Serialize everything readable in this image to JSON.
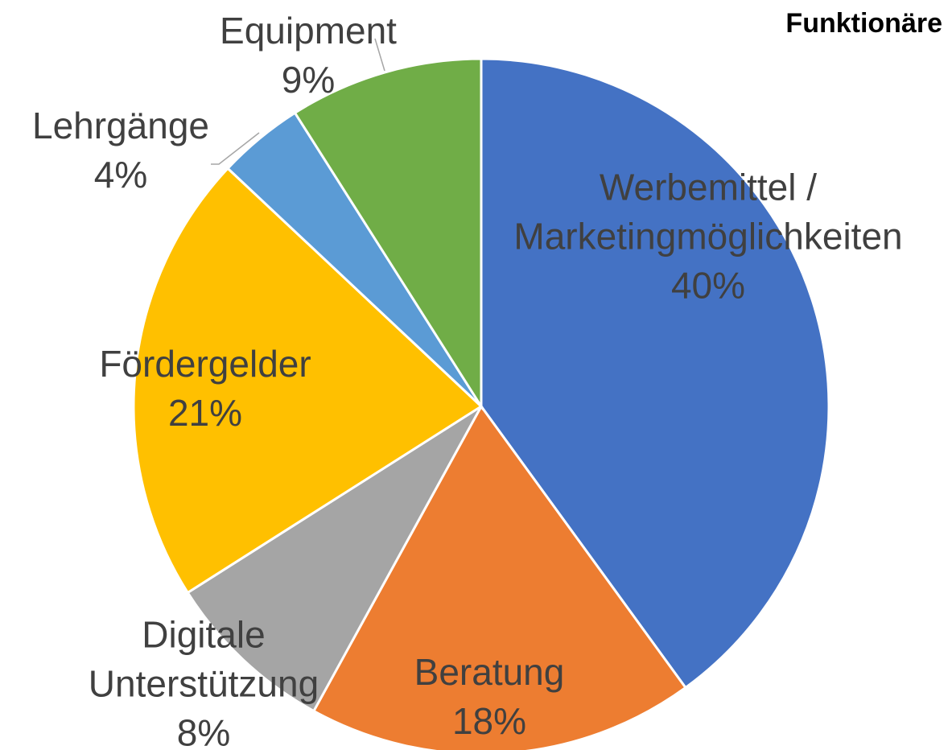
{
  "chart_data": {
    "type": "pie",
    "title": "Funktionäre",
    "categories": [
      "Werbemittel /\nMarketingmöglichkeiten",
      "Beratung",
      "Digitale\nUnterstützung",
      "Fördergelder",
      "Lehrgänge",
      "Equipment"
    ],
    "values": [
      40,
      18,
      8,
      21,
      4,
      9
    ],
    "value_labels": [
      "40%",
      "18%",
      "8%",
      "21%",
      "4%",
      "9%"
    ],
    "colors": [
      "#4472c4",
      "#ed7d31",
      "#a5a5a5",
      "#ffc000",
      "#5b9bd5",
      "#70ad47"
    ]
  }
}
